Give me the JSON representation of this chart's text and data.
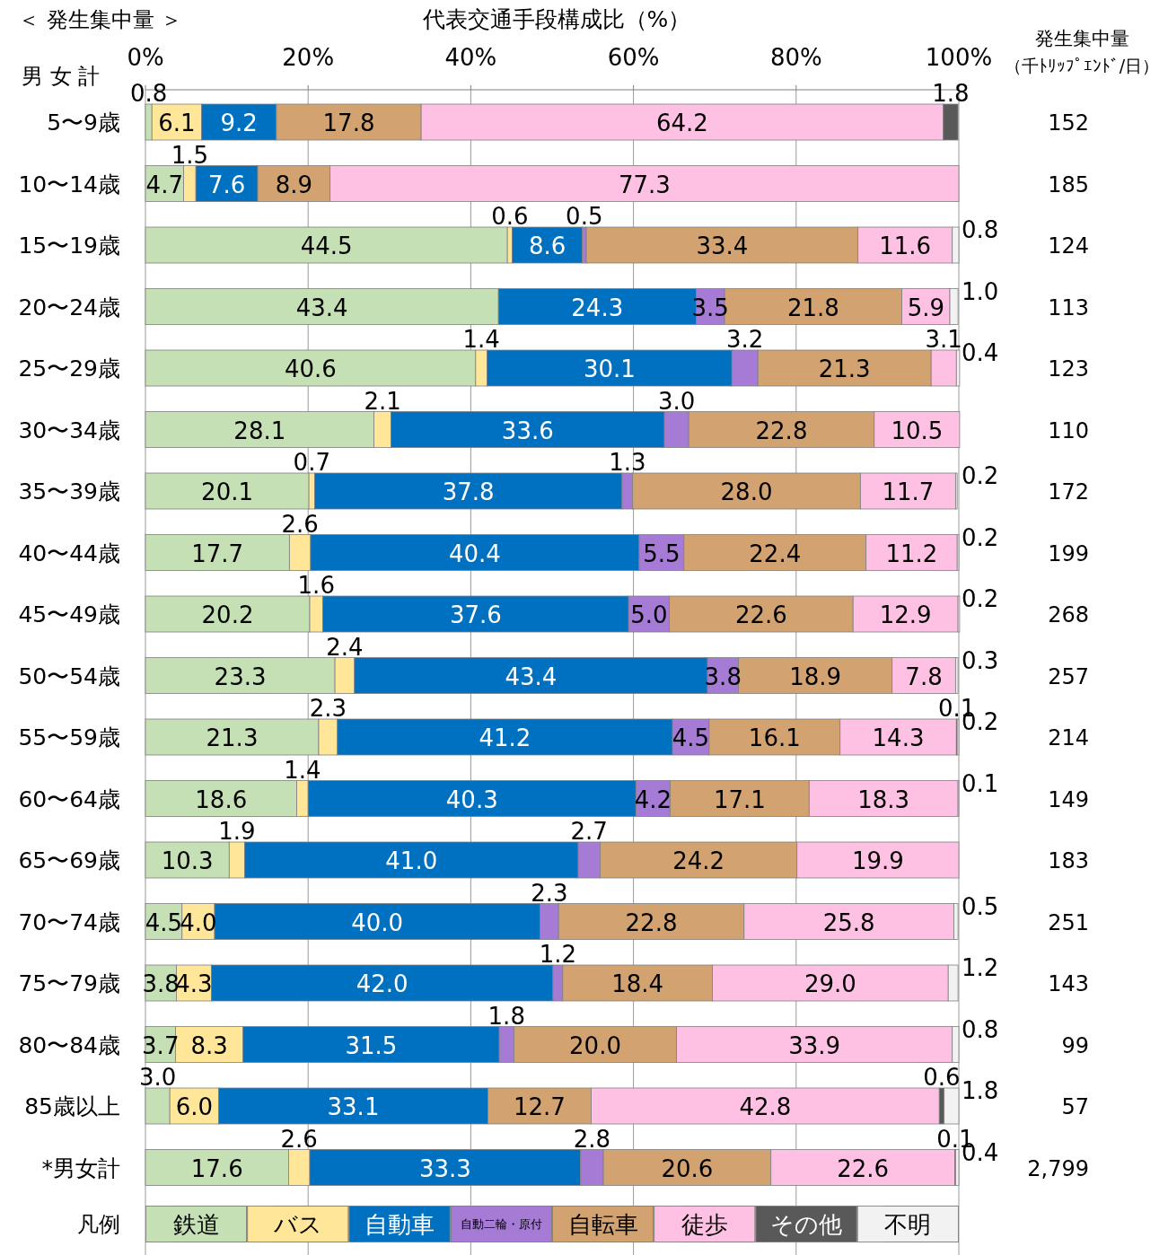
{
  "chart_data": {
    "type": "bar",
    "orientation": "horizontal",
    "stacked": true,
    "title": "代表交通手段構成比（%）",
    "categories": [
      "5〜9歳",
      "10〜14歳",
      "15〜19歳",
      "20〜24歳",
      "25〜29歳",
      "30〜34歳",
      "35〜39歳",
      "40〜44歳",
      "45〜49歳",
      "50〜54歳",
      "55〜59歳",
      "60〜64歳",
      "65〜69歳",
      "70〜74歳",
      "75〜79歳",
      "80〜84歳",
      "85歳以上",
      "*男女計"
    ],
    "xlim": [
      0,
      100
    ],
    "xticks": [
      {
        "value": 0,
        "label": "0%"
      },
      {
        "value": 20,
        "label": "20%"
      },
      {
        "value": 40,
        "label": "40%"
      },
      {
        "value": 60,
        "label": "60%"
      },
      {
        "value": 80,
        "label": "80%"
      },
      {
        "value": 100,
        "label": "100%"
      }
    ],
    "grid": "x",
    "legend": "bottom",
    "legend_title": "凡例",
    "series": [
      {
        "name": "鉄道",
        "color": "#c5e0b4",
        "values": [
          0.8,
          4.7,
          44.5,
          43.4,
          40.6,
          28.1,
          20.1,
          17.7,
          20.2,
          23.3,
          21.3,
          18.6,
          10.3,
          4.5,
          3.8,
          3.7,
          3.0,
          17.6
        ],
        "value_labels": [
          "0.8",
          "4.7",
          "44.5",
          "43.4",
          "40.6",
          "28.1",
          "20.1",
          "17.7",
          "20.2",
          "23.3",
          "21.3",
          "18.6",
          "10.3",
          "4.5",
          "3.8",
          "3.7",
          "3.0",
          "17.6"
        ]
      },
      {
        "name": "バス",
        "color": "#ffe699",
        "values": [
          6.1,
          1.5,
          0.6,
          null,
          1.4,
          2.1,
          0.7,
          2.6,
          1.6,
          2.4,
          2.3,
          1.4,
          1.9,
          4.0,
          4.3,
          8.3,
          6.0,
          2.6
        ],
        "value_labels": [
          "6.1",
          "1.5",
          "0.6",
          null,
          "1.4",
          "2.1",
          "0.7",
          "2.6",
          "1.6",
          "2.4",
          "2.3",
          "1.4",
          "1.9",
          "4.0",
          "4.3",
          "8.3",
          "6.0",
          "2.6"
        ]
      },
      {
        "name": "自動車",
        "color": "#0070c0",
        "values": [
          9.2,
          7.6,
          8.6,
          24.3,
          30.1,
          33.6,
          37.8,
          40.4,
          37.6,
          43.4,
          41.2,
          40.3,
          41.0,
          40.0,
          42.0,
          31.5,
          33.1,
          33.3
        ],
        "value_labels": [
          "9.2",
          "7.6",
          "8.6",
          "24.3",
          "30.1",
          "33.6",
          "37.8",
          "40.4",
          "37.6",
          "43.4",
          "41.2",
          "40.3",
          "41.0",
          "40.0",
          "42.0",
          "31.5",
          "33.1",
          "33.3"
        ]
      },
      {
        "name": "自動二輪・原付",
        "color": "#a57bd6",
        "values": [
          null,
          null,
          0.5,
          3.5,
          3.2,
          3.0,
          1.3,
          5.5,
          5.0,
          3.8,
          4.5,
          4.2,
          2.7,
          2.3,
          1.2,
          1.8,
          null,
          2.8
        ],
        "value_labels": [
          null,
          null,
          "0.5",
          "3.5",
          "3.2",
          "3.0",
          "1.3",
          "5.5",
          "5.0",
          "3.8",
          "4.5",
          "4.2",
          "2.7",
          "2.3",
          "1.2",
          "1.8",
          null,
          "2.8"
        ]
      },
      {
        "name": "自転車",
        "color": "#d2a271",
        "values": [
          17.8,
          8.9,
          33.4,
          21.8,
          21.3,
          22.8,
          28.0,
          22.4,
          22.6,
          18.9,
          16.1,
          17.1,
          24.2,
          22.8,
          18.4,
          20.0,
          12.7,
          20.6
        ],
        "value_labels": [
          "17.8",
          "8.9",
          "33.4",
          "21.8",
          "21.3",
          "22.8",
          "28.0",
          "22.4",
          "22.6",
          "18.9",
          "16.1",
          "17.1",
          "24.2",
          "22.8",
          "18.4",
          "20.0",
          "12.7",
          "20.6"
        ]
      },
      {
        "name": "徒歩",
        "color": "#ffc1e3",
        "values": [
          64.2,
          77.3,
          11.6,
          5.9,
          3.1,
          10.5,
          11.7,
          11.2,
          12.9,
          7.8,
          14.3,
          18.3,
          19.9,
          25.8,
          29.0,
          33.9,
          42.8,
          22.6
        ],
        "value_labels": [
          "64.2",
          "77.3",
          "11.6",
          "5.9",
          "3.1",
          "10.5",
          "11.7",
          "11.2",
          "12.9",
          "7.8",
          "14.3",
          "18.3",
          "19.9",
          "25.8",
          "29.0",
          "33.9",
          "42.8",
          "22.6"
        ]
      },
      {
        "name": "その他",
        "color": "#595959",
        "values": [
          1.8,
          null,
          null,
          null,
          null,
          null,
          null,
          null,
          null,
          null,
          0.1,
          null,
          null,
          null,
          null,
          null,
          0.6,
          0.1
        ],
        "value_labels": [
          "1.8",
          null,
          null,
          null,
          null,
          null,
          null,
          null,
          null,
          null,
          "0.1",
          null,
          null,
          null,
          null,
          null,
          "0.6",
          "0.1"
        ]
      },
      {
        "name": "不明",
        "color": "#f2f2f2",
        "values": [
          null,
          null,
          0.8,
          1.0,
          0.4,
          null,
          0.2,
          0.2,
          0.2,
          0.3,
          0.2,
          0.1,
          null,
          0.5,
          1.2,
          0.8,
          1.8,
          0.4
        ],
        "value_labels": [
          null,
          null,
          "0.8",
          "1.0",
          "0.4",
          null,
          "0.2",
          "0.2",
          "0.2",
          "0.3",
          "0.2",
          "0.1",
          null,
          "0.5",
          "1.2",
          "0.8",
          "1.8",
          "0.4"
        ]
      }
    ],
    "annotations": [
      "＜ 発生集中量 ＞",
      "男 女 計",
      "発生集中量",
      "（千ﾄﾘｯﾌﾟｴﾝﾄﾞ/日）",
      "152",
      "185",
      "124",
      "113",
      "123",
      "110",
      "172",
      "199",
      "268",
      "257",
      "214",
      "149",
      "183",
      "251",
      "143",
      "99",
      "57",
      "2,799"
    ]
  }
}
